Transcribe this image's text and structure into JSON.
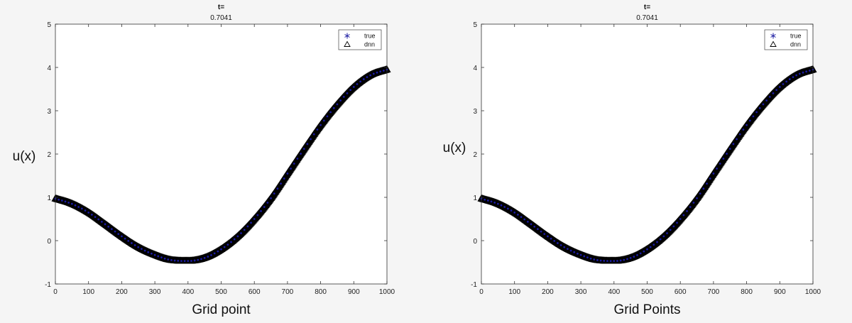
{
  "chart_data": [
    {
      "type": "scatter",
      "title": "t=",
      "subtitle": "0.7041",
      "xlabel": "Grid point",
      "ylabel": "u(x)",
      "xlim": [
        0,
        1000
      ],
      "ylim": [
        -1,
        5
      ],
      "xticks": [
        0,
        100,
        200,
        300,
        400,
        500,
        600,
        700,
        800,
        900,
        1000
      ],
      "yticks": [
        -1,
        0,
        1,
        2,
        3,
        4,
        5
      ],
      "grid": false,
      "legend_position": "top-right",
      "curve_samples": {
        "x": [
          0,
          50,
          100,
          150,
          200,
          250,
          300,
          350,
          400,
          450,
          500,
          550,
          600,
          650,
          700,
          750,
          800,
          850,
          900,
          950,
          1000
        ],
        "y": [
          0.97,
          0.85,
          0.65,
          0.38,
          0.1,
          -0.15,
          -0.33,
          -0.45,
          -0.47,
          -0.4,
          -0.2,
          0.1,
          0.5,
          0.98,
          1.55,
          2.12,
          2.67,
          3.15,
          3.55,
          3.82,
          3.95
        ]
      },
      "series": [
        {
          "name": "true",
          "marker": "*",
          "color": "#1a1aa0"
        },
        {
          "name": "dnn",
          "marker": "triangle",
          "color": "#000000"
        }
      ]
    },
    {
      "type": "scatter",
      "title": "t=",
      "subtitle": "0.7041",
      "xlabel": "Grid Points",
      "ylabel": "u(x)",
      "xlim": [
        0,
        1000
      ],
      "ylim": [
        -1,
        5
      ],
      "xticks": [
        0,
        100,
        200,
        300,
        400,
        500,
        600,
        700,
        800,
        900,
        1000
      ],
      "yticks": [
        -1,
        0,
        1,
        2,
        3,
        4,
        5
      ],
      "grid": false,
      "legend_position": "top-right",
      "curve_samples": {
        "x": [
          0,
          50,
          100,
          150,
          200,
          250,
          300,
          350,
          400,
          450,
          500,
          550,
          600,
          650,
          700,
          750,
          800,
          850,
          900,
          950,
          1000
        ],
        "y": [
          0.97,
          0.85,
          0.65,
          0.38,
          0.1,
          -0.15,
          -0.33,
          -0.45,
          -0.47,
          -0.4,
          -0.2,
          0.1,
          0.5,
          0.98,
          1.55,
          2.12,
          2.67,
          3.15,
          3.55,
          3.82,
          3.95
        ]
      },
      "series": [
        {
          "name": "true",
          "marker": "*",
          "color": "#1a1aa0"
        },
        {
          "name": "dnn",
          "marker": "triangle",
          "color": "#000000"
        }
      ]
    }
  ]
}
